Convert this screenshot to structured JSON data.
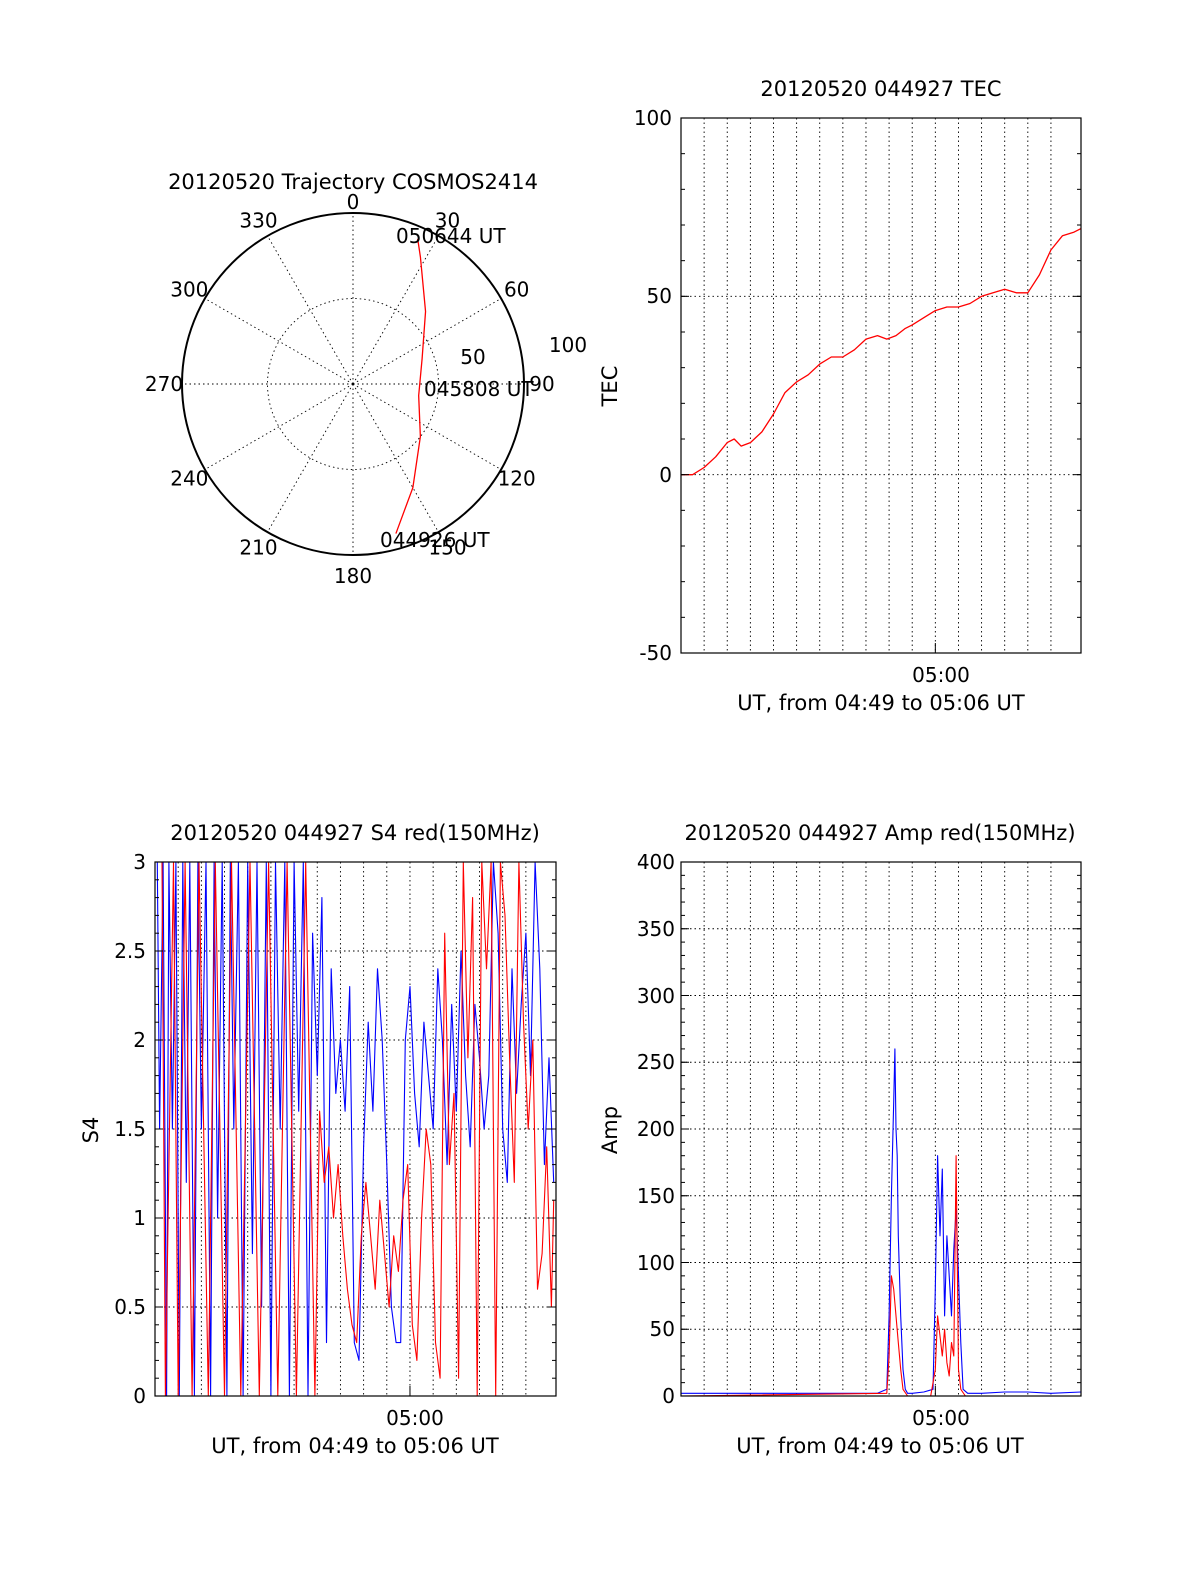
{
  "colors": {
    "red": "#ff0000",
    "blue": "#0000ff",
    "axis": "#000000"
  },
  "chart_data": [
    {
      "id": "polar",
      "type": "scatter",
      "title": "20120520 Trajectory COSMOS2414",
      "azimuth_labels": [
        "0",
        "30",
        "60",
        "90",
        "120",
        "150",
        "180",
        "210",
        "240",
        "270",
        "300",
        "330"
      ],
      "ring_labels": [
        "50",
        "100"
      ],
      "ring_values": [
        50,
        100
      ],
      "point_labels": {
        "end": "050644 UT",
        "middle": "045808 UT",
        "start": "044926 UT"
      },
      "note": "trajectory: azimuth (deg) / radius (ring units)",
      "trajectory": [
        {
          "az": 164,
          "r": 91
        },
        {
          "az": 150,
          "r": 70
        },
        {
          "az": 128,
          "r": 50
        },
        {
          "az": 100,
          "r": 39
        },
        {
          "az": 70,
          "r": 43
        },
        {
          "az": 45,
          "r": 60
        },
        {
          "az": 28,
          "r": 84
        },
        {
          "az": 24,
          "r": 93
        }
      ]
    },
    {
      "id": "tec",
      "type": "line",
      "title": "20120520 044927 TEC",
      "xlabel": "UT, from 04:49 to 05:06 UT",
      "ylabel": "TEC",
      "ylim": [
        -50,
        100
      ],
      "yticks": [
        "100",
        "50",
        "0",
        "-50"
      ],
      "ytick_values": [
        100,
        50,
        0,
        -50
      ],
      "xlim": [
        0,
        17.3
      ],
      "xticks": [
        "05:00"
      ],
      "xtick_values": [
        11
      ],
      "xgrid_values": [
        1,
        2,
        3,
        4,
        5,
        6,
        7,
        8,
        9,
        10,
        11,
        12,
        13,
        14,
        15,
        16
      ],
      "series": [
        {
          "color": "red",
          "x": [
            0,
            0.5,
            1,
            1.5,
            2,
            2.3,
            2.6,
            3,
            3.5,
            4,
            4.5,
            5,
            5.5,
            6,
            6.5,
            7,
            7.5,
            8,
            8.5,
            8.9,
            9.3,
            9.7,
            10,
            10.5,
            11,
            11.5,
            12,
            12.5,
            13,
            13.5,
            14,
            14.5,
            15,
            15.5,
            16,
            16.5,
            17,
            17.3
          ],
          "y": [
            0,
            0,
            2,
            5,
            9,
            10,
            8,
            9,
            12,
            17,
            23,
            26,
            28,
            31,
            33,
            33,
            35,
            38,
            39,
            38,
            39,
            41,
            42,
            44,
            46,
            47,
            47,
            48,
            50,
            51,
            52,
            51,
            51,
            56,
            63,
            67,
            68,
            69
          ]
        }
      ]
    },
    {
      "id": "s4",
      "type": "line",
      "title": "20120520 044927 S4 red(150MHz)",
      "xlabel": "UT, from 04:49 to 05:06 UT",
      "ylabel": "S4",
      "ylim": [
        0,
        3
      ],
      "yticks": [
        "3",
        "2.5",
        "2",
        "1.5",
        "1",
        "0.5",
        "0"
      ],
      "ytick_values": [
        3,
        2.5,
        2,
        1.5,
        1,
        0.5,
        0
      ],
      "xlim": [
        0,
        17.3
      ],
      "xticks": [
        "05:00"
      ],
      "xtick_values": [
        11
      ],
      "xgrid_values": [
        1,
        2,
        3,
        4,
        5,
        6,
        7,
        8,
        9,
        10,
        11,
        12,
        13,
        14,
        15,
        16
      ],
      "series": [
        {
          "color": "blue",
          "x": [
            0.1,
            0.2,
            0.35,
            0.5,
            0.6,
            0.75,
            0.9,
            1.05,
            1.2,
            1.35,
            1.5,
            1.7,
            1.85,
            2.0,
            2.2,
            2.4,
            2.55,
            2.7,
            2.9,
            3.1,
            3.25,
            3.4,
            3.6,
            3.8,
            4.0,
            4.2,
            4.4,
            4.6,
            4.8,
            5.0,
            5.2,
            5.4,
            5.6,
            5.8,
            6.0,
            6.2,
            6.4,
            6.6,
            6.8,
            7.0,
            7.2,
            7.4,
            7.6,
            7.8,
            8.0,
            8.2,
            8.4,
            8.6,
            8.8,
            9.0,
            9.2,
            9.4,
            9.6,
            9.8,
            10.0,
            10.2,
            10.4,
            10.6,
            10.8,
            11.0,
            11.2,
            11.4,
            11.6,
            11.8,
            12.0,
            12.2,
            12.4,
            12.6,
            12.8,
            13.0,
            13.2,
            13.4,
            13.6,
            13.8,
            14.0,
            14.2,
            14.4,
            14.6,
            14.8,
            15.0,
            15.2,
            15.4,
            15.6,
            15.8,
            16.0,
            16.2,
            16.4,
            16.6,
            16.8,
            17.0,
            17.2
          ],
          "y": [
            3,
            1.5,
            3,
            0,
            3,
            1.5,
            3,
            0,
            3,
            1.2,
            3,
            0,
            3,
            1.5,
            3,
            0,
            3,
            1.0,
            3,
            0,
            3,
            1.5,
            3,
            0,
            3,
            0.8,
            3,
            0.5,
            3,
            0,
            3,
            1.5,
            3,
            0,
            3,
            1.6,
            3,
            0,
            2.6,
            1.8,
            2.8,
            0.3,
            2.4,
            1.7,
            2.0,
            1.6,
            2.3,
            0.3,
            0.2,
            1.4,
            2.1,
            1.6,
            2.4,
            2.0,
            1.3,
            0.5,
            0.3,
            0.3,
            2.0,
            2.3,
            1.7,
            1.4,
            2.1,
            1.8,
            1.5,
            2.4,
            2.0,
            1.3,
            2.2,
            1.6,
            2.5,
            1.8,
            1.4,
            2.2,
            1.9,
            1.5,
            1.8,
            3.0,
            2.6,
            1.5,
            1.2,
            2.4,
            1.7,
            2.2,
            2.6,
            1.8,
            3.0,
            2.4,
            1.3,
            1.9,
            1.2
          ]
        },
        {
          "color": "red",
          "x": [
            0.3,
            0.45,
            0.8,
            1.0,
            1.3,
            1.6,
            1.9,
            2.3,
            2.6,
            3.0,
            3.3,
            3.7,
            4.1,
            4.5,
            4.9,
            5.3,
            5.7,
            6.1,
            6.5,
            6.9,
            7.1,
            7.3,
            7.5,
            7.7,
            7.9,
            8.1,
            8.3,
            8.5,
            8.7,
            8.9,
            9.1,
            9.3,
            9.5,
            9.7,
            9.9,
            10.1,
            10.3,
            10.5,
            10.7,
            10.9,
            11.1,
            11.3,
            11.5,
            11.7,
            11.9,
            12.1,
            12.3,
            12.5,
            12.7,
            12.9,
            13.1,
            13.3,
            13.5,
            13.7,
            13.9,
            14.1,
            14.3,
            14.5,
            14.7,
            14.9,
            15.1,
            15.3,
            15.5,
            15.7,
            15.9,
            16.1,
            16.3,
            16.5,
            16.7,
            16.9,
            17.1,
            17.2
          ],
          "y": [
            3,
            0,
            3,
            0,
            3,
            0,
            3,
            0,
            3,
            0,
            3,
            0,
            3,
            0,
            3,
            0,
            3,
            0,
            3,
            0,
            1.6,
            1.2,
            1.4,
            1.0,
            1.3,
            0.9,
            0.6,
            0.4,
            0.3,
            0.9,
            1.2,
            0.9,
            0.6,
            1.1,
            0.8,
            0.5,
            0.9,
            0.7,
            1.1,
            1.3,
            0.4,
            0.2,
            1.0,
            1.5,
            1.3,
            0.3,
            0.1,
            2.6,
            1.3,
            1.7,
            0.1,
            3.0,
            1.9,
            2.8,
            0.0,
            3.0,
            2.4,
            3.0,
            0.0,
            3.0,
            2.7,
            1.9,
            1.2,
            3.0,
            2.1,
            1.5,
            2.0,
            0.6,
            0.8,
            1.4,
            0.5,
            1.1
          ]
        }
      ]
    },
    {
      "id": "amp",
      "type": "line",
      "title": "20120520 044927 Amp red(150MHz)",
      "xlabel": "UT, from 04:49 to 05:06 UT",
      "ylabel": "Amp",
      "ylim": [
        0,
        400
      ],
      "yticks": [
        "400",
        "350",
        "300",
        "250",
        "200",
        "150",
        "100",
        "50",
        "0"
      ],
      "ytick_values": [
        400,
        350,
        300,
        250,
        200,
        150,
        100,
        50,
        0
      ],
      "xlim": [
        0,
        17.3
      ],
      "xticks": [
        "05:00"
      ],
      "xtick_values": [
        11
      ],
      "xgrid_values": [
        1,
        2,
        3,
        4,
        5,
        6,
        7,
        8,
        9,
        10,
        11,
        12,
        13,
        14,
        15,
        16
      ],
      "series": [
        {
          "color": "blue",
          "x": [
            0,
            2,
            4,
            6,
            8.5,
            8.9,
            9.0,
            9.1,
            9.2,
            9.25,
            9.3,
            9.35,
            9.4,
            9.5,
            9.6,
            9.7,
            9.8,
            10.0,
            10.5,
            10.9,
            11.0,
            11.1,
            11.2,
            11.3,
            11.4,
            11.5,
            11.6,
            11.7,
            11.8,
            11.9,
            12.0,
            12.1,
            12.2,
            12.4,
            13,
            14,
            15,
            16,
            17.3
          ],
          "y": [
            2,
            2,
            2,
            2,
            2,
            5,
            60,
            150,
            220,
            260,
            200,
            180,
            120,
            60,
            20,
            5,
            2,
            2,
            3,
            5,
            80,
            180,
            120,
            170,
            60,
            120,
            90,
            60,
            110,
            140,
            90,
            40,
            5,
            2,
            2,
            3,
            3,
            2,
            3
          ]
        },
        {
          "color": "red",
          "x": [
            0,
            8.9,
            9.0,
            9.1,
            9.2,
            9.3,
            9.4,
            9.5,
            9.6,
            9.8,
            10.8,
            11.0,
            11.1,
            11.2,
            11.3,
            11.4,
            11.5,
            11.6,
            11.7,
            11.8,
            11.9,
            12.0,
            12.1,
            12.3
          ],
          "y": [
            0,
            2,
            30,
            90,
            80,
            60,
            40,
            20,
            5,
            0,
            0,
            20,
            60,
            45,
            30,
            50,
            25,
            15,
            40,
            30,
            180,
            20,
            5,
            0
          ]
        }
      ]
    }
  ]
}
